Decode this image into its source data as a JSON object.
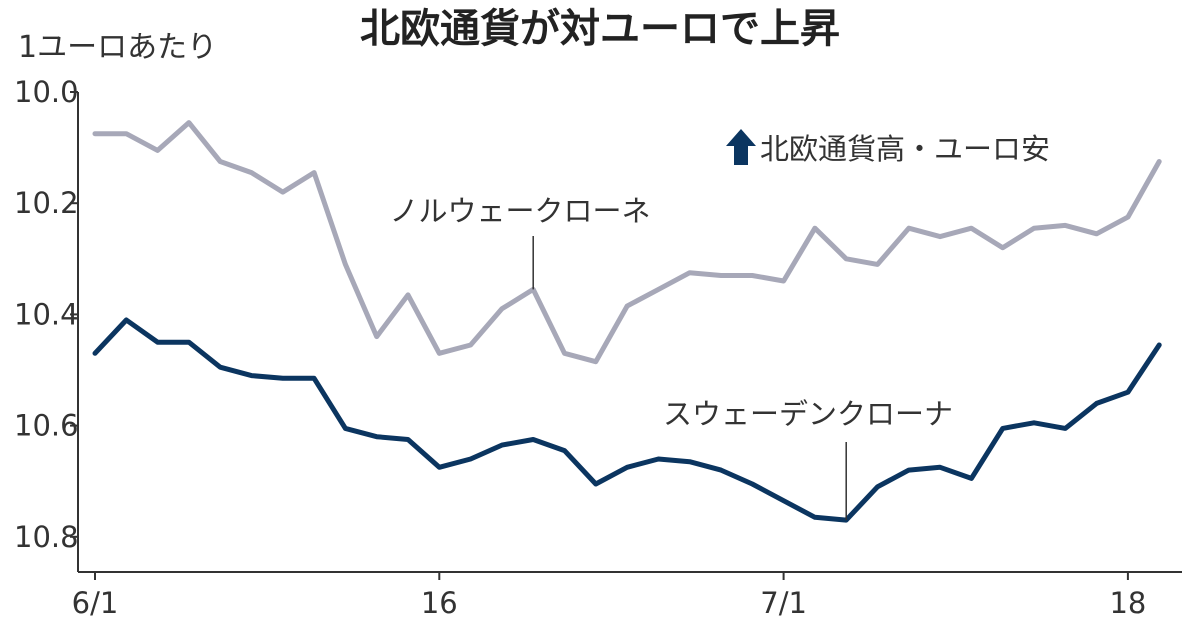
{
  "chart_data": {
    "type": "line",
    "title": "北欧通貨が対ユーロで上昇",
    "ylabel": "1ユーロあたり",
    "ylim": [
      10.0,
      10.85
    ],
    "y_inverted": true,
    "yticks": [
      "10.0",
      "10.2",
      "10.4",
      "10.6",
      "10.8"
    ],
    "ytick_values": [
      10.0,
      10.2,
      10.4,
      10.6,
      10.8
    ],
    "xticks": [
      "6/1",
      "16",
      "7/1",
      "18"
    ],
    "xtick_indices": [
      0,
      11,
      22,
      33
    ],
    "legend_note": "北欧通貨高・ユーロ安",
    "colors": {
      "NOK": "#a7a8b8",
      "SEK": "#0b3560",
      "text": "#333333",
      "arrow": "#0b3560"
    },
    "series": [
      {
        "name": "ノルウェークローネ",
        "key": "NOK",
        "values": [
          10.075,
          10.075,
          10.105,
          10.055,
          10.125,
          10.145,
          10.18,
          10.145,
          10.31,
          10.44,
          10.365,
          10.47,
          10.455,
          10.39,
          10.355,
          10.47,
          10.485,
          10.385,
          10.355,
          10.325,
          10.33,
          10.33,
          10.34,
          10.245,
          10.3,
          10.31,
          10.245,
          10.26,
          10.245,
          10.28,
          10.245,
          10.24,
          10.255,
          10.225,
          10.125
        ],
        "label_index": 14
      },
      {
        "name": "スウェーデンクローナ",
        "key": "SEK",
        "values": [
          10.47,
          10.41,
          10.45,
          10.45,
          10.495,
          10.51,
          10.515,
          10.515,
          10.605,
          10.62,
          10.625,
          10.675,
          10.66,
          10.635,
          10.625,
          10.645,
          10.705,
          10.675,
          10.66,
          10.665,
          10.68,
          10.705,
          10.735,
          10.765,
          10.77,
          10.71,
          10.68,
          10.675,
          10.695,
          10.605,
          10.595,
          10.605,
          10.56,
          10.54,
          10.455
        ],
        "label_index": 24
      }
    ]
  }
}
